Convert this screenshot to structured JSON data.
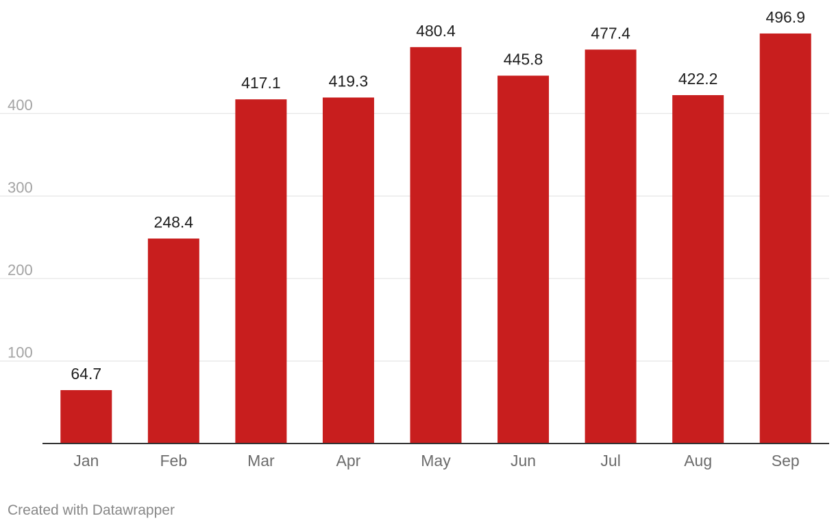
{
  "chart_data": {
    "type": "bar",
    "categories": [
      "Jan",
      "Feb",
      "Mar",
      "Apr",
      "May",
      "Jun",
      "Jul",
      "Aug",
      "Sep"
    ],
    "values": [
      64.7,
      248.4,
      417.1,
      419.3,
      480.4,
      445.8,
      477.4,
      422.2,
      496.9
    ],
    "value_labels": [
      "64.7",
      "248.4",
      "417.1",
      "419.3",
      "480.4",
      "445.8",
      "477.4",
      "422.2",
      "496.9"
    ],
    "yticks": [
      100,
      200,
      300,
      400
    ],
    "ylim": [
      0,
      500
    ],
    "grid": true,
    "bar_color": "#c81e1e"
  },
  "footer": {
    "credit": "Created with Datawrapper"
  }
}
